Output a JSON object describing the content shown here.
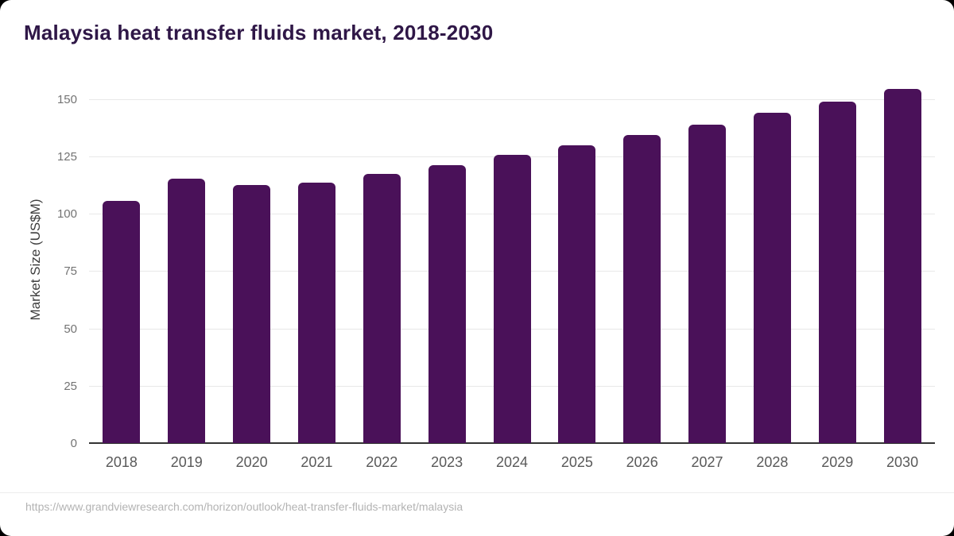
{
  "page": {
    "title": "Malaysia heat transfer fluids market, 2018-2030",
    "source_url": "https://www.grandviewresearch.com/horizon/outlook/heat-transfer-fluids-market/malaysia"
  },
  "colors": {
    "bar_fill": "#4a1159",
    "title_text": "#2f1747",
    "gridline": "#e8e8e8",
    "axis_baseline": "#333333",
    "y_tick_text": "#737373",
    "x_tick_text": "#595959",
    "y_axis_title_text": "#3d3d3d",
    "source_text": "#b3b3b3",
    "card_background": "#ffffff"
  },
  "chart_data": {
    "type": "bar",
    "title": "Malaysia heat transfer fluids market, 2018-2030",
    "categories": [
      "2018",
      "2019",
      "2020",
      "2021",
      "2022",
      "2023",
      "2024",
      "2025",
      "2026",
      "2027",
      "2028",
      "2029",
      "2030"
    ],
    "values": [
      105.8,
      115.4,
      112.7,
      113.5,
      117.5,
      121.2,
      125.6,
      129.9,
      134.5,
      138.8,
      144.0,
      148.9,
      154.6
    ],
    "xlabel": "",
    "ylabel": "Market Size (US$M)",
    "ylim": [
      0,
      160
    ],
    "yticks": [
      0,
      25,
      50,
      75,
      100,
      125,
      150
    ],
    "grid": true,
    "legend": false,
    "bar_corner_radius": 6
  }
}
